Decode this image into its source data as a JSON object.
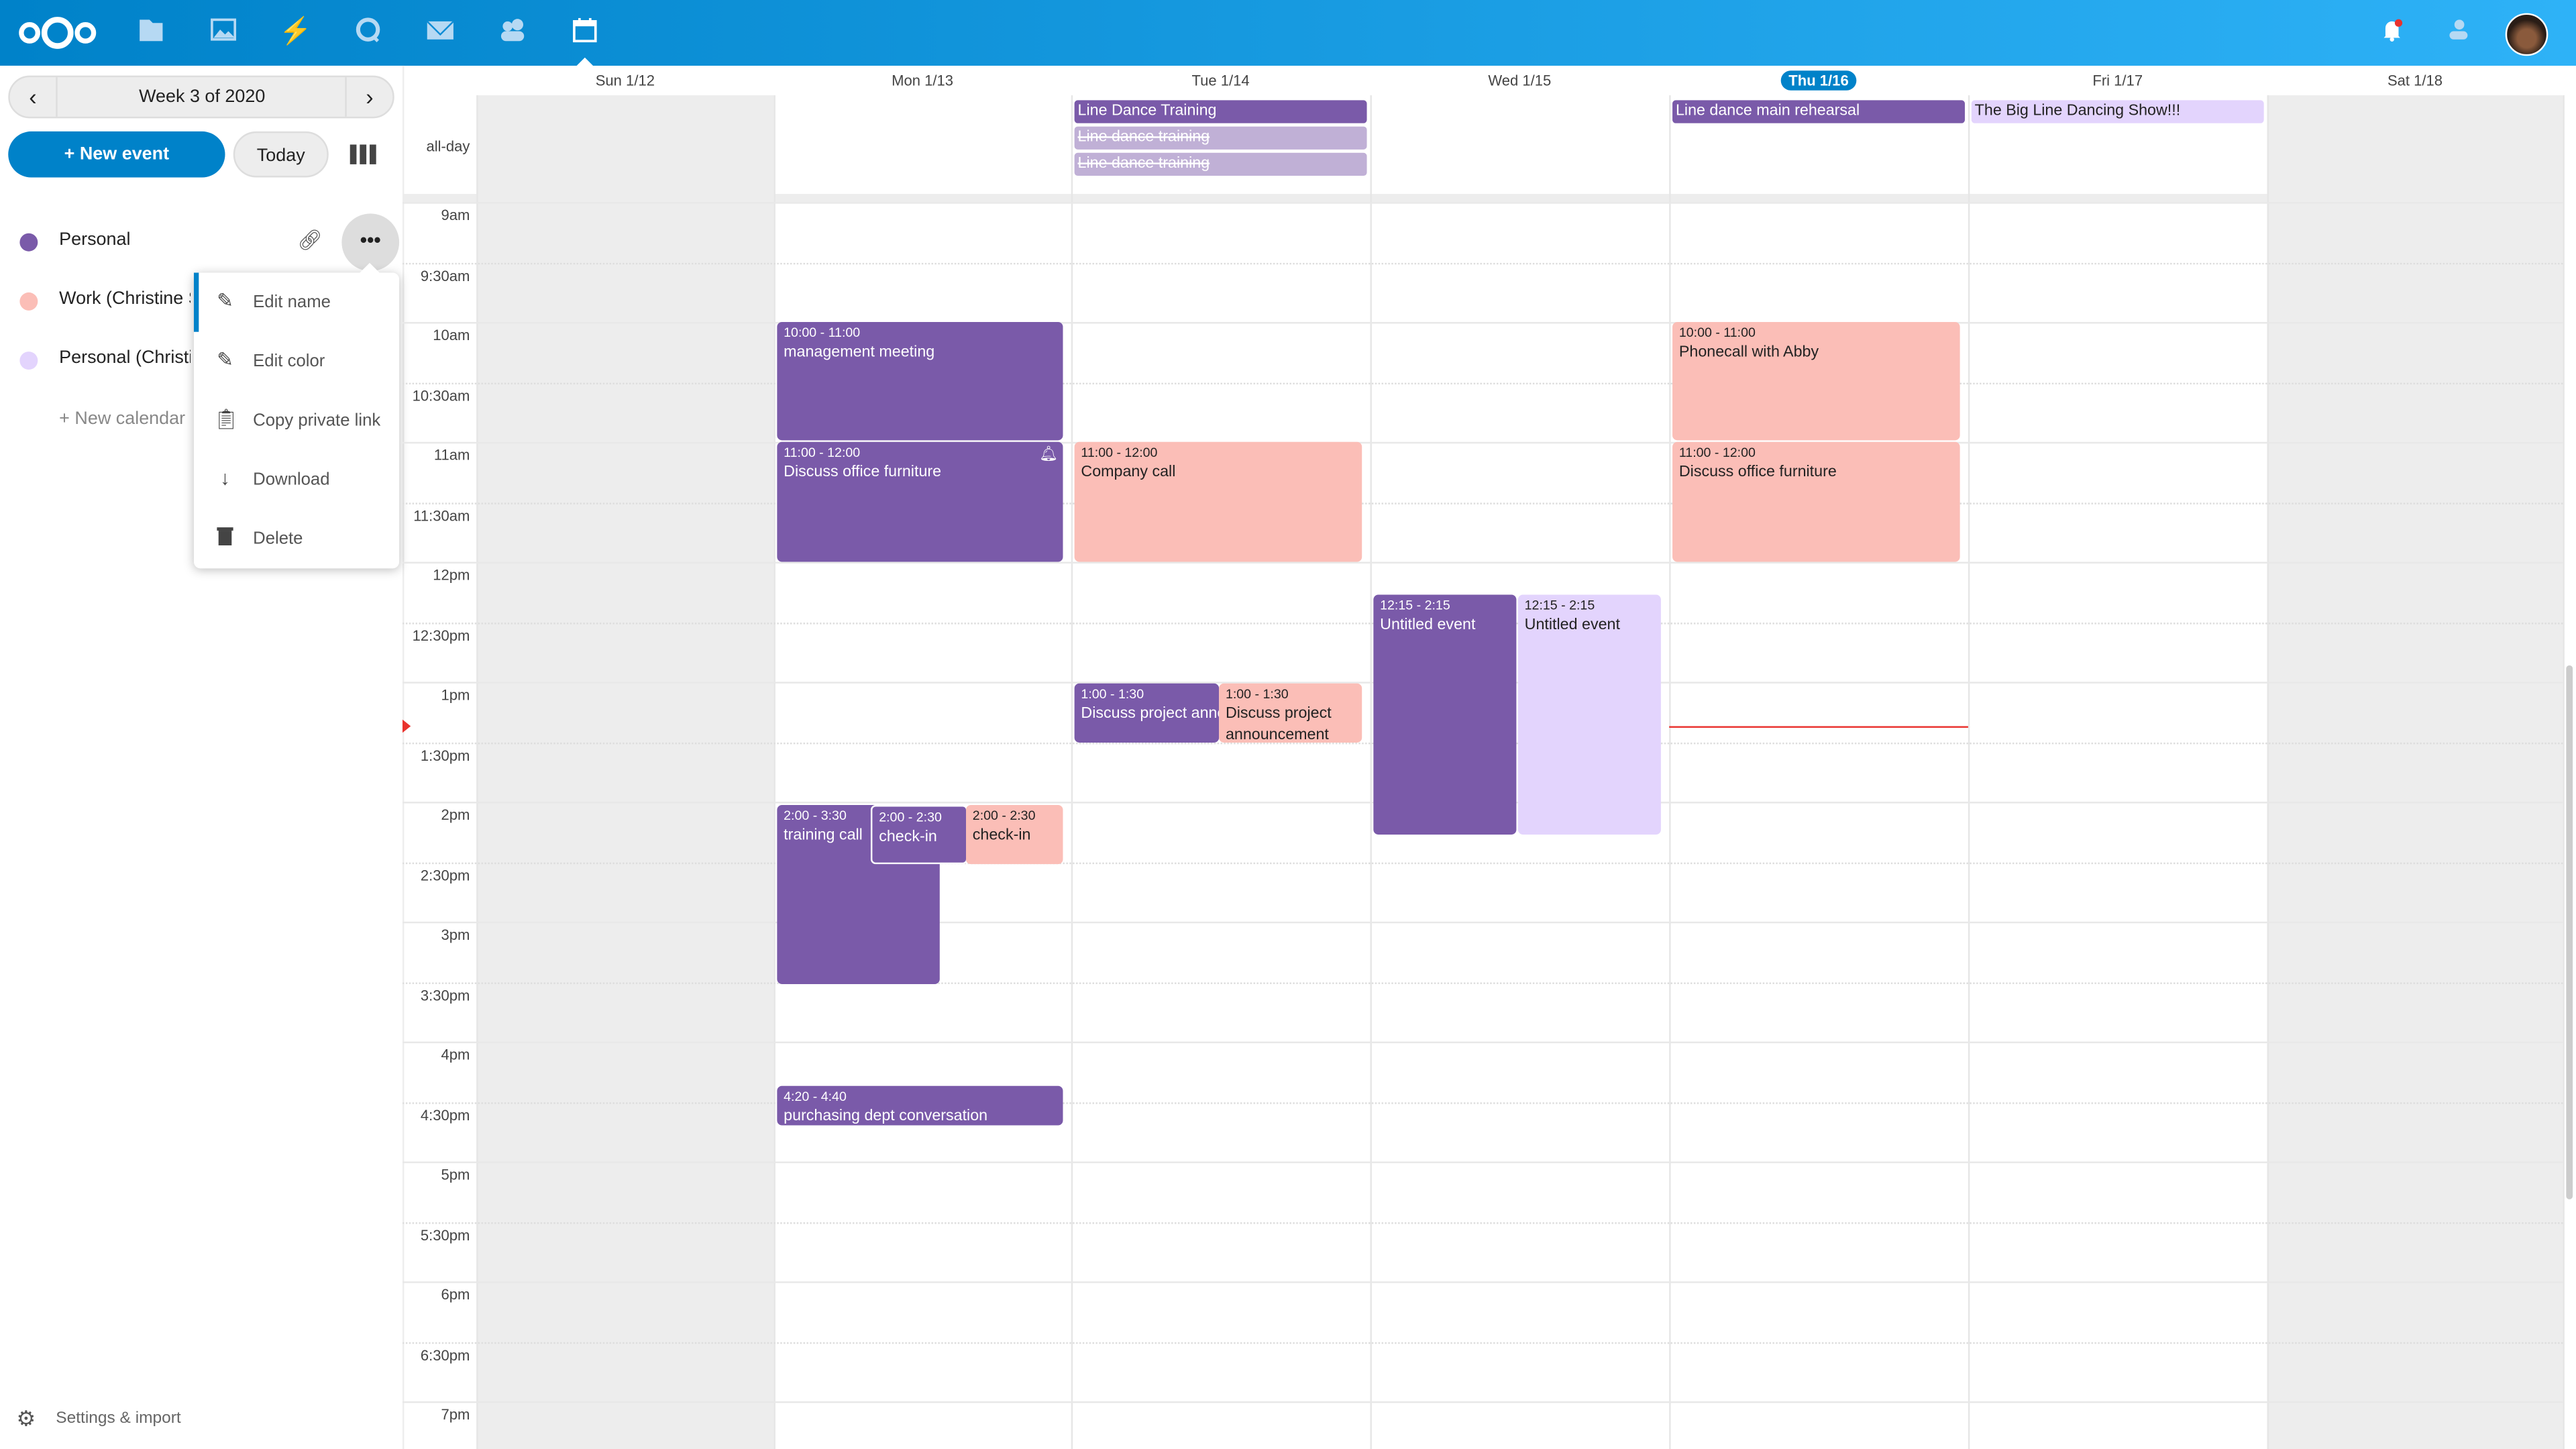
{
  "header": {
    "apps": [
      "logo-icon",
      "files-icon",
      "photos-icon",
      "activity-icon",
      "talk-icon",
      "mail-icon",
      "contacts-icon",
      "calendar-icon"
    ],
    "right": [
      "notifications-icon",
      "contacts-menu-icon",
      "avatar"
    ],
    "accent": "#0082c9"
  },
  "sidebar": {
    "week_label": "Week 3 of 2020",
    "new_event": "+ New event",
    "today": "Today",
    "calendars": [
      {
        "label": "Personal",
        "color": "#7a5aa9"
      },
      {
        "label": "Work (Christine Schott)",
        "color": "#fbbeb7"
      },
      {
        "label": "Personal (Christine Schott)",
        "color": "#e3d4fd"
      }
    ],
    "new_calendar": "+ New calendar",
    "settings": "Settings & import",
    "menu": [
      {
        "label": "Edit name",
        "icon": "pencil-icon"
      },
      {
        "label": "Edit color",
        "icon": "pencil-icon"
      },
      {
        "label": "Copy private link",
        "icon": "clipboard-icon"
      },
      {
        "label": "Download",
        "icon": "download-icon"
      },
      {
        "label": "Delete",
        "icon": "trash-icon"
      }
    ]
  },
  "calendar": {
    "days": [
      "Sun 1/12",
      "Mon 1/13",
      "Tue 1/14",
      "Wed 1/15",
      "Thu 1/16",
      "Fri 1/17",
      "Sat 1/18"
    ],
    "today_index": 4,
    "allday_label": "all-day",
    "times": [
      "9am",
      "9:30am",
      "10am",
      "10:30am",
      "11am",
      "11:30am",
      "12pm",
      "12:30pm",
      "1pm",
      "1:30pm",
      "2pm",
      "2:30pm",
      "3pm",
      "3:30pm",
      "4pm",
      "4:30pm",
      "5pm",
      "5:30pm",
      "6pm",
      "6:30pm",
      "7pm"
    ],
    "allday_events": [
      {
        "day": "Tue 1/14",
        "title": "Line Dance Training",
        "calendar": "Personal"
      },
      {
        "day": "Tue 1/14",
        "title": "Line dance training",
        "cancelled": true
      },
      {
        "day": "Tue 1/14",
        "title": "Line dance training",
        "cancelled": true
      },
      {
        "day": "Thu 1/16",
        "title": "Line dance main rehearsal",
        "calendar": "Personal"
      },
      {
        "day": "Fri 1/17",
        "title": "The Big Line Dancing Show!!!",
        "calendar": "Personal (Christine Schott)"
      }
    ],
    "events": [
      {
        "day": "Mon 1/13",
        "time": "10:00 - 11:00",
        "title": "management meeting",
        "calendar": "Personal"
      },
      {
        "day": "Mon 1/13",
        "time": "11:00 - 12:00",
        "title": "Discuss office furniture",
        "calendar": "Personal",
        "reminder": true
      },
      {
        "day": "Mon 1/13",
        "time": "2:00 - 3:30",
        "title": "training call",
        "calendar": "Personal"
      },
      {
        "day": "Mon 1/13",
        "time": "2:00 - 2:30",
        "title": "check-in",
        "calendar": "Personal"
      },
      {
        "day": "Mon 1/13",
        "time": "2:00 - 2:30",
        "title": "check-in",
        "calendar": "Work (Christine Schott)"
      },
      {
        "day": "Mon 1/13",
        "time": "4:20 - 4:40",
        "title": "purchasing dept conversation",
        "calendar": "Personal"
      },
      {
        "day": "Tue 1/14",
        "time": "11:00 - 12:00",
        "title": "Company call",
        "calendar": "Work (Christine Schott)"
      },
      {
        "day": "Tue 1/14",
        "time": "1:00 - 1:30",
        "title": "Discuss project announcement",
        "calendar": "Personal"
      },
      {
        "day": "Tue 1/14",
        "time": "1:00 - 1:30",
        "title": "Discuss project announcement",
        "calendar": "Work (Christine Schott)"
      },
      {
        "day": "Wed 1/15",
        "time": "12:15 - 2:15",
        "title": "Untitled event",
        "calendar": "Personal"
      },
      {
        "day": "Wed 1/15",
        "time": "12:15 - 2:15",
        "title": "Untitled event",
        "calendar": "Personal (Christine Schott)"
      },
      {
        "day": "Thu 1/16",
        "time": "10:00 - 11:00",
        "title": "Phonecall with Abby",
        "calendar": "Work (Christine Schott)"
      },
      {
        "day": "Thu 1/16",
        "time": "11:00 - 12:00",
        "title": "Discuss office furniture",
        "calendar": "Work (Christine Schott)"
      }
    ]
  }
}
